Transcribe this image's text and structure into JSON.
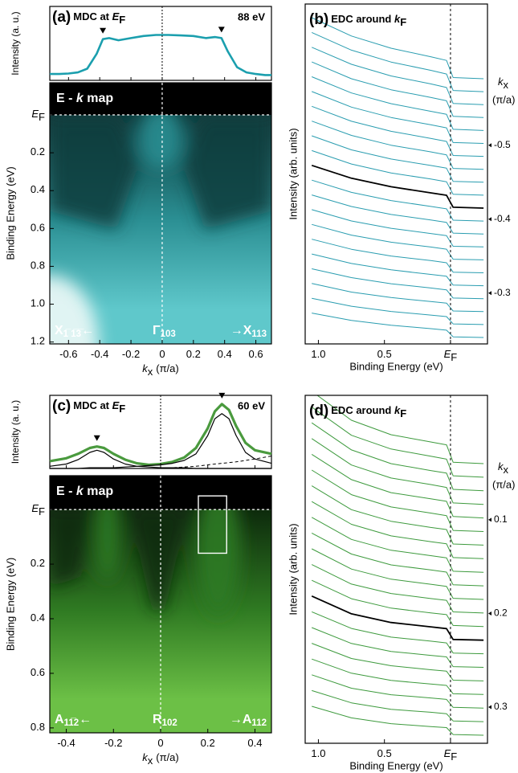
{
  "chart_data": [
    {
      "type": "mdc_map",
      "panel": "(a)",
      "title": [
        "MDC at ",
        "E",
        "F"
      ],
      "photon_energy": "88 eV",
      "mdc_ylabel": "Intensity (a. u.)",
      "map_label": [
        "E - ",
        "k",
        " map"
      ],
      "ylabel": "Binding Energy (eV)",
      "xlabel": [
        "k",
        "x",
        "(π/a)"
      ],
      "x": [
        -0.72,
        -0.66,
        -0.6,
        -0.54,
        -0.48,
        -0.42,
        -0.38,
        -0.34,
        -0.28,
        -0.2,
        -0.12,
        -0.04,
        0.04,
        0.12,
        0.2,
        0.28,
        0.34,
        0.38,
        0.42,
        0.48,
        0.54,
        0.6,
        0.66,
        0.7
      ],
      "series": [
        {
          "values": [
            0.12,
            0.12,
            0.13,
            0.15,
            0.22,
            0.5,
            0.78,
            0.8,
            0.76,
            0.8,
            0.84,
            0.86,
            0.86,
            0.85,
            0.84,
            0.8,
            0.82,
            0.8,
            0.55,
            0.25,
            0.15,
            0.12,
            0.1,
            0.1
          ],
          "color": "#1b9fae",
          "width": 2.6
        }
      ],
      "ylim": [
        0,
        1.4
      ],
      "peak_markers": [
        -0.38,
        0.38
      ],
      "xlim": [
        -0.72,
        0.7
      ],
      "xticks": [
        -0.6,
        -0.4,
        -0.2,
        0,
        0.2,
        0.4,
        0.6
      ],
      "map_ylim": [
        -0.17,
        1.21
      ],
      "map_yticks": [
        {
          "value": 0,
          "label": "E",
          "label_sub": "F"
        },
        0.2,
        0.4,
        0.6,
        0.8,
        {
          "value": 1,
          "label": "1.0"
        },
        1.2
      ],
      "symmetry_labels": [
        {
          "text": "X",
          "sub": "1̅ 1̅3̅",
          "suffix": "←"
        },
        {
          "text": "Γ",
          "sub": "103"
        },
        {
          "prefix": "→",
          "text": "X",
          "sub": "113"
        }
      ],
      "colormap": [
        "#000000",
        "#0e3c3d",
        "#2a8e92",
        "#5fc8cb",
        "#eef8f7"
      ],
      "center_line": true
    },
    {
      "type": "edc_stack",
      "panel": "(b)",
      "title": [
        "EDC around ",
        "k",
        "F"
      ],
      "ylabel": "Intensity (arb. units)",
      "xlabel": "Binding Energy (eV)",
      "x": [
        1.05,
        0.75,
        0.45,
        0.15,
        0.03,
        -0.02,
        -0.25
      ],
      "xlim": [
        1.1,
        -0.28
      ],
      "xticks": [
        {
          "value": 1,
          "label": "1.0"
        },
        0.5,
        {
          "value": 0,
          "label": "E",
          "label_sub": "F"
        }
      ],
      "ef_line": true,
      "series": [
        {
          "values": [
            2.0,
            1.4,
            1.0,
            0.72,
            0.6,
            0.04,
            0
          ]
        },
        {
          "values": [
            1.94,
            1.36,
            0.97,
            0.7,
            0.58,
            0.04,
            0
          ]
        },
        {
          "values": [
            1.88,
            1.32,
            0.94,
            0.68,
            0.56,
            0.04,
            0
          ]
        },
        {
          "values": [
            1.82,
            1.27,
            0.91,
            0.66,
            0.55,
            0.04,
            0
          ]
        },
        {
          "values": [
            1.76,
            1.23,
            0.88,
            0.63,
            0.53,
            0.04,
            0
          ]
        },
        {
          "values": [
            1.7,
            1.19,
            0.85,
            0.61,
            0.51,
            0.03,
            0
          ]
        },
        {
          "values": [
            1.64,
            1.15,
            0.82,
            0.59,
            0.49,
            0.03,
            0
          ]
        },
        {
          "values": [
            1.58,
            1.11,
            0.79,
            0.57,
            0.47,
            0.03,
            0
          ]
        },
        {
          "values": [
            1.52,
            1.06,
            0.76,
            0.55,
            0.46,
            0.03,
            0
          ]
        },
        {
          "values": [
            1.46,
            1.02,
            0.73,
            0.53,
            0.44,
            0.03,
            0
          ]
        },
        {
          "values": [
            1.4,
            0.98,
            0.7,
            0.5,
            0.42,
            0.03,
            0
          ]
        },
        {
          "values": [
            1.34,
            0.94,
            0.67,
            0.48,
            0.4,
            0.03,
            0
          ]
        },
        {
          "values": [
            1.28,
            0.9,
            0.64,
            0.46,
            0.38,
            0.03,
            0
          ]
        },
        {
          "values": [
            1.22,
            0.85,
            0.61,
            0.44,
            0.37,
            0.02,
            0
          ]
        },
        {
          "values": [
            1.16,
            0.81,
            0.58,
            0.42,
            0.35,
            0.02,
            0
          ]
        },
        {
          "values": [
            1.1,
            0.77,
            0.55,
            0.4,
            0.33,
            0.02,
            0
          ]
        },
        {
          "values": [
            1.04,
            0.73,
            0.52,
            0.37,
            0.31,
            0.02,
            0
          ]
        },
        {
          "values": [
            0.98,
            0.69,
            0.49,
            0.35,
            0.29,
            0.02,
            0
          ]
        },
        {
          "values": [
            0.92,
            0.64,
            0.46,
            0.33,
            0.28,
            0.02,
            0
          ]
        },
        {
          "values": [
            0.86,
            0.6,
            0.43,
            0.31,
            0.26,
            0.02,
            0
          ]
        },
        {
          "values": [
            0.8,
            0.56,
            0.4,
            0.29,
            0.24,
            0.02,
            0
          ]
        }
      ],
      "color": "#2a9db0",
      "highlight": {
        "index": 10,
        "color": "#000000"
      },
      "ktitle": [
        "k",
        "x",
        "(π/a)"
      ],
      "y2lim": [
        -0.59,
        -0.24
      ],
      "y2ticks": [
        -0.5,
        -0.4,
        -0.3
      ]
    },
    {
      "type": "mdc_map",
      "panel": "(c)",
      "title": [
        "MDC at ",
        "E",
        "F"
      ],
      "photon_energy": "60 eV",
      "mdc_ylabel": "Intensity (a. u.)",
      "map_label": [
        "E - ",
        "k",
        " map"
      ],
      "ylabel": "Binding Energy (eV)",
      "xlabel": [
        "k",
        "x",
        "(π/a)"
      ],
      "x": [
        -0.47,
        -0.4,
        -0.35,
        -0.3,
        -0.27,
        -0.24,
        -0.2,
        -0.15,
        -0.1,
        -0.05,
        0,
        0.05,
        0.1,
        0.15,
        0.2,
        0.23,
        0.26,
        0.29,
        0.32,
        0.36,
        0.4,
        0.47
      ],
      "series": [
        {
          "values": [
            0.1,
            0.14,
            0.2,
            0.28,
            0.3,
            0.28,
            0.2,
            0.12,
            0.07,
            0.05,
            0.06,
            0.09,
            0.15,
            0.28,
            0.55,
            0.78,
            0.88,
            0.8,
            0.58,
            0.35,
            0.25,
            0.2
          ],
          "color": "#4a9a3e",
          "width": 3.2
        },
        {
          "values": [
            0.03,
            0.06,
            0.12,
            0.22,
            0.25,
            0.22,
            0.13,
            0.06,
            0.03,
            0.02,
            0.01,
            0.01,
            0.01,
            0,
            0,
            0,
            0,
            0,
            0,
            0,
            0,
            0
          ],
          "color": "#000000",
          "width": 1.2
        },
        {
          "values": [
            0,
            0,
            0,
            0.01,
            0.01,
            0.01,
            0.01,
            0.02,
            0.03,
            0.04,
            0.05,
            0.07,
            0.11,
            0.2,
            0.45,
            0.68,
            0.75,
            0.68,
            0.45,
            0.22,
            0.13,
            0.07
          ],
          "color": "#000000",
          "width": 1.2
        },
        {
          "values": [
            0,
            0,
            0,
            0,
            0,
            0,
            0,
            0,
            0,
            0,
            0,
            0.01,
            0.02,
            0.03,
            0.05,
            0.06,
            0.07,
            0.08,
            0.09,
            0.11,
            0.13,
            0.17
          ],
          "color": "#000000",
          "width": 1,
          "dash": true
        }
      ],
      "ylim": [
        0,
        1.0
      ],
      "peak_markers": [
        -0.27,
        0.26
      ],
      "xlim": [
        -0.47,
        0.47
      ],
      "xticks": [
        -0.4,
        -0.2,
        0,
        0.2,
        0.4
      ],
      "map_ylim": [
        -0.124,
        0.818
      ],
      "map_yticks": [
        {
          "value": 0,
          "label": "E",
          "label_sub": "F"
        },
        0.2,
        0.4,
        0.6,
        0.8
      ],
      "symmetry_labels": [
        {
          "text": "A",
          "sub": "11̅2",
          "suffix": "←"
        },
        {
          "text": "R",
          "sub": "102"
        },
        {
          "prefix": "→",
          "text": "A",
          "sub": "112"
        }
      ],
      "highlight_box": {
        "x": [
          0.16,
          0.28
        ],
        "y": [
          -0.05,
          0.16
        ]
      },
      "colormap": [
        "#000000",
        "#0d2a0c",
        "#2f7a22",
        "#6cc046",
        "#8fd46a"
      ],
      "center_line": true
    },
    {
      "type": "edc_stack",
      "panel": "(d)",
      "title": [
        "EDC around ",
        "k",
        "F"
      ],
      "ylabel": "Intensity (arb. units)",
      "xlabel": "Binding Energy (eV)",
      "x": [
        1.05,
        0.75,
        0.45,
        0.15,
        0.03,
        -0.02,
        -0.25
      ],
      "xlim": [
        1.1,
        -0.28
      ],
      "xticks": [
        {
          "value": 1,
          "label": "1.0"
        },
        0.5,
        {
          "value": 0,
          "label": "E",
          "label_sub": "F"
        }
      ],
      "ef_line": true,
      "series": [
        {
          "values": [
            2.0,
            1.2,
            0.8,
            0.6,
            0.52,
            0.04,
            0
          ]
        },
        {
          "values": [
            1.94,
            1.16,
            0.78,
            0.58,
            0.5,
            0.04,
            0
          ]
        },
        {
          "values": [
            1.88,
            1.13,
            0.75,
            0.56,
            0.49,
            0.04,
            0
          ]
        },
        {
          "values": [
            1.82,
            1.09,
            0.73,
            0.55,
            0.47,
            0.04,
            0
          ]
        },
        {
          "values": [
            1.76,
            1.06,
            0.7,
            0.53,
            0.46,
            0.04,
            0
          ]
        },
        {
          "values": [
            1.7,
            1.02,
            0.68,
            0.51,
            0.44,
            0.03,
            0
          ]
        },
        {
          "values": [
            1.64,
            0.98,
            0.66,
            0.49,
            0.43,
            0.03,
            0
          ]
        },
        {
          "values": [
            1.58,
            0.95,
            0.63,
            0.47,
            0.41,
            0.03,
            0
          ]
        },
        {
          "values": [
            1.52,
            0.91,
            0.61,
            0.46,
            0.4,
            0.03,
            0
          ]
        },
        {
          "values": [
            1.46,
            0.88,
            0.58,
            0.44,
            0.38,
            0.03,
            0
          ]
        },
        {
          "values": [
            1.4,
            0.84,
            0.56,
            0.42,
            0.36,
            0.03,
            0
          ]
        },
        {
          "values": [
            1.34,
            0.8,
            0.54,
            0.4,
            0.35,
            0.03,
            0
          ]
        },
        {
          "values": [
            1.28,
            0.77,
            0.51,
            0.38,
            0.33,
            0.03,
            0
          ]
        },
        {
          "values": [
            1.22,
            0.73,
            0.49,
            0.37,
            0.32,
            0.02,
            0
          ]
        },
        {
          "values": [
            1.16,
            0.7,
            0.46,
            0.35,
            0.3,
            0.02,
            0
          ]
        },
        {
          "values": [
            1.1,
            0.66,
            0.44,
            0.33,
            0.29,
            0.02,
            0
          ]
        },
        {
          "values": [
            1.04,
            0.62,
            0.42,
            0.31,
            0.27,
            0.02,
            0
          ]
        },
        {
          "values": [
            0.98,
            0.59,
            0.39,
            0.29,
            0.25,
            0.02,
            0
          ]
        },
        {
          "values": [
            0.92,
            0.55,
            0.37,
            0.28,
            0.24,
            0.02,
            0
          ]
        },
        {
          "values": [
            0.86,
            0.52,
            0.34,
            0.26,
            0.22,
            0.02,
            0
          ]
        },
        {
          "values": [
            0.8,
            0.48,
            0.32,
            0.24,
            0.21,
            0.02,
            0
          ]
        }
      ],
      "color": "#3d9a3d",
      "highlight": {
        "index": 13,
        "color": "#000000"
      },
      "ktitle": [
        "k",
        "x",
        "(π/a)"
      ],
      "y2lim": [
        0.04,
        0.33
      ],
      "y2ticks": [
        0.1,
        0.2,
        0.3
      ]
    }
  ]
}
